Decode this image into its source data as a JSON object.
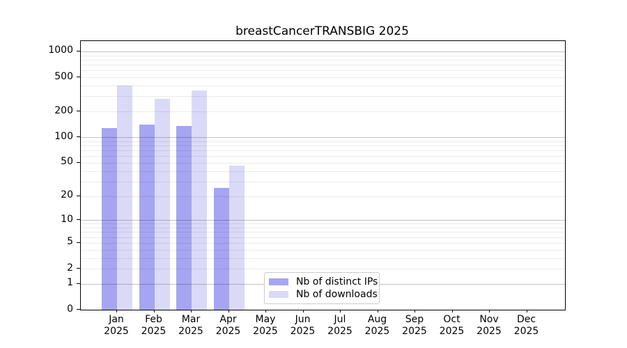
{
  "chart_data": {
    "type": "bar",
    "title": "breastCancerTRANSBIG 2025",
    "year": "2025",
    "categories": [
      "Jan",
      "Feb",
      "Mar",
      "Apr",
      "May",
      "Jun",
      "Jul",
      "Aug",
      "Sep",
      "Oct",
      "Nov",
      "Dec"
    ],
    "series": [
      {
        "name": "Nb of distinct IPs",
        "color": "#a5a5f2",
        "values": [
          129,
          141,
          135,
          25,
          0,
          0,
          0,
          0,
          0,
          0,
          0,
          0
        ]
      },
      {
        "name": "Nb of downloads",
        "color": "#dadaf8",
        "values": [
          400,
          280,
          351,
          46,
          0,
          0,
          0,
          0,
          0,
          0,
          0,
          0
        ]
      }
    ],
    "scale": "log1p",
    "ylim": [
      0,
      1320
    ],
    "yticks": [
      0,
      1,
      2,
      5,
      10,
      20,
      50,
      100,
      200,
      500,
      1000
    ],
    "grid_major": [
      1,
      10,
      100,
      1000
    ],
    "grid_minor": [
      2,
      3,
      4,
      5,
      6,
      7,
      8,
      9,
      20,
      30,
      40,
      50,
      60,
      70,
      80,
      90,
      200,
      300,
      400,
      500,
      600,
      700,
      800,
      900
    ],
    "legend": {
      "entries": [
        "Nb of distinct IPs",
        "Nb of downloads"
      ],
      "position": "lower-center"
    },
    "grid": "on",
    "xlabel": "",
    "ylabel": ""
  }
}
